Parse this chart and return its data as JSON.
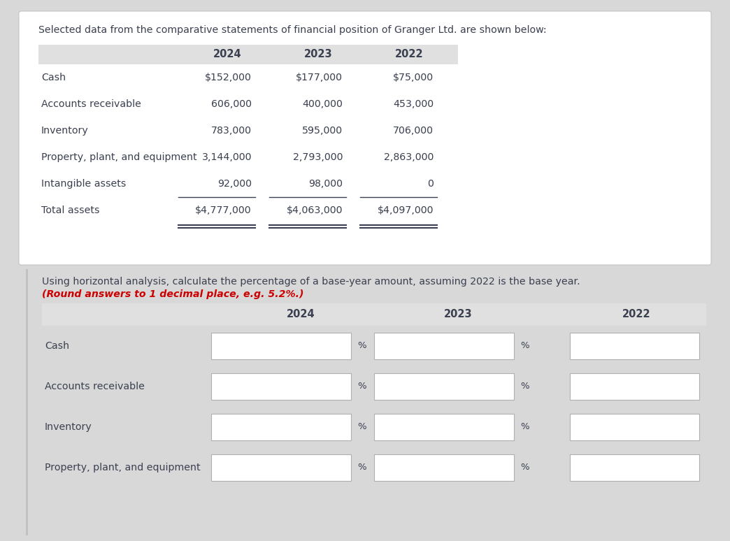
{
  "title": "Selected data from the comparative statements of financial position of Granger Ltd. are shown below:",
  "table1_headers": [
    "2024",
    "2023",
    "2022"
  ],
  "table1_rows": [
    [
      "Cash",
      "$152,000",
      "$177,000",
      "$75,000"
    ],
    [
      "Accounts receivable",
      "606,000",
      "400,000",
      "453,000"
    ],
    [
      "Inventory",
      "783,000",
      "595,000",
      "706,000"
    ],
    [
      "Property, plant, and equipment",
      "3,144,000",
      "2,793,000",
      "2,863,000"
    ],
    [
      "Intangible assets",
      "92,000",
      "98,000",
      "0"
    ],
    [
      "Total assets",
      "$4,777,000",
      "$4,063,000",
      "$4,097,000"
    ]
  ],
  "instruction_normal": "Using horizontal analysis, calculate the percentage of a base-year amount, assuming 2022 is the base year.",
  "instruction_bold_red": "(Round answers to 1 decimal place, e.g. 5.2%.)",
  "table2_headers": [
    "2024",
    "2023",
    "2022"
  ],
  "table2_rows": [
    [
      "Cash"
    ],
    [
      "Accounts receivable"
    ],
    [
      "Inventory"
    ],
    [
      "Property, plant, and equipment"
    ]
  ],
  "header_bg": "#e0e0e0",
  "white": "#ffffff",
  "text_color": "#3a4050",
  "red_color": "#cc0000",
  "outer_bg": "#d8d8d8",
  "card_border": "#c0c0c0",
  "box_border": "#b0b0b0"
}
